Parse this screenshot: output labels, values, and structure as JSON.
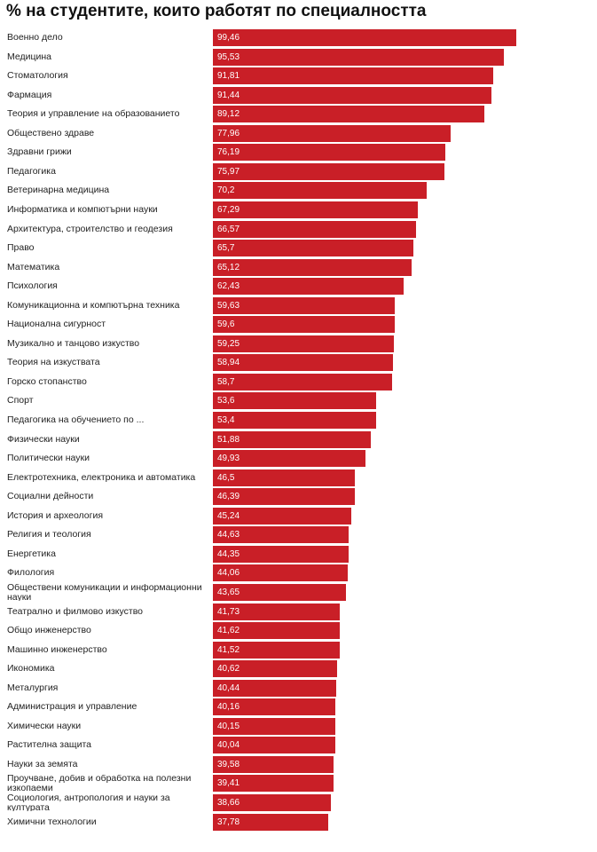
{
  "chart_data": {
    "type": "bar",
    "orientation": "horizontal",
    "title": "% на студентите, които работят по специалността",
    "bar_color": "#c91f27",
    "value_label_color": "#ffffff",
    "categories": [
      "Военно дело",
      "Медицина",
      "Стоматология",
      "Фармация",
      "Теория и управление на образованието",
      "Обществено здраве",
      "Здравни грижи",
      "Педагогика",
      "Ветеринарна медицина",
      "Информатика и компютърни науки",
      "Архитектура, строителство и геодезия",
      "Право",
      "Математика",
      "Психология",
      "Комуникационна и компютърна техника",
      "Национална сигурност",
      "Музикално и танцово изкуство",
      "Теория на изкуствата",
      "Горско стопанство",
      "Спорт",
      "Педагогика на обучението по ...",
      "Физически науки",
      "Политически науки",
      "Електротехника, електроника и автоматика",
      "Социални дейности",
      "История и археология",
      "Религия и теология",
      "Енергетика",
      "Филология",
      "Обществени комуникации и информационни науки",
      "Театрално и филмово изкуство",
      "Общо инженерство",
      "Машинно инженерство",
      "Икономика",
      "Металургия",
      "Администрация и управление",
      "Химически науки",
      "Растителна защита",
      "Науки за земята",
      "Проучване, добив и обработка на полезни изкопаеми",
      "Социология, антропология и науки за културата",
      "Химични технологии"
    ],
    "values": [
      99.46,
      95.53,
      91.81,
      91.44,
      89.12,
      77.96,
      76.19,
      75.97,
      70.2,
      67.29,
      66.57,
      65.7,
      65.12,
      62.43,
      59.63,
      59.6,
      59.25,
      58.94,
      58.7,
      53.6,
      53.4,
      51.88,
      49.93,
      46.5,
      46.39,
      45.24,
      44.63,
      44.35,
      44.06,
      43.65,
      41.73,
      41.62,
      41.52,
      40.62,
      40.44,
      40.16,
      40.15,
      40.04,
      39.58,
      39.41,
      38.66,
      37.78
    ],
    "value_labels": [
      "99,46",
      "95,53",
      "91,81",
      "91,44",
      "89,12",
      "77,96",
      "76,19",
      "75,97",
      "70,2",
      "67,29",
      "66,57",
      "65,7",
      "65,12",
      "62,43",
      "59,63",
      "59,6",
      "59,25",
      "58,94",
      "58,7",
      "53,6",
      "53,4",
      "51,88",
      "49,93",
      "46,5",
      "46,39",
      "45,24",
      "44,63",
      "44,35",
      "44,06",
      "43,65",
      "41,73",
      "41,62",
      "41,52",
      "40,62",
      "40,44",
      "40,16",
      "40,15",
      "40,04",
      "39,58",
      "39,41",
      "38,66",
      "37,78"
    ],
    "xlim": [
      0,
      100
    ],
    "grid": false,
    "legend": "none"
  }
}
